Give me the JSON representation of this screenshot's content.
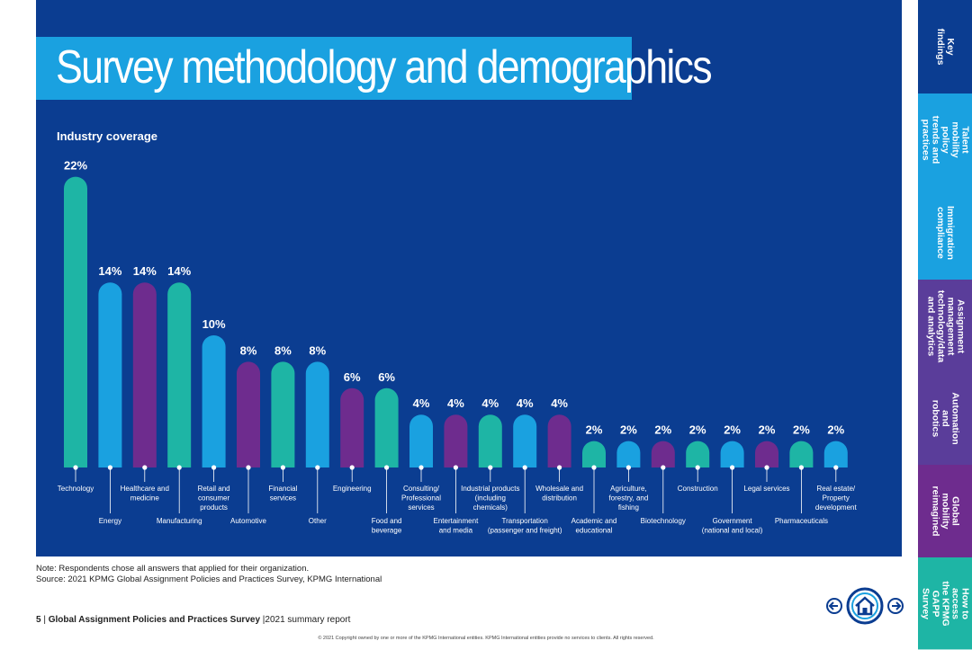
{
  "page": {
    "title": "Survey methodology and demographics",
    "section_title": "Industry coverage"
  },
  "sidebar": [
    {
      "label": "Key findings",
      "color": "#0b3d91"
    },
    {
      "label": "Talent mobility\npolicy trends and\npractices",
      "color": "#1aa1e0"
    },
    {
      "label": "Immigration\ncompliance",
      "color": "#1aa1e0"
    },
    {
      "label": "Assignment\nmanagement\ntechnology/data\nand analytics",
      "color": "#5a3d9a"
    },
    {
      "label": "Automation and\nrobotics",
      "color": "#5a3d9a"
    },
    {
      "label": "Global mobility\nreimagined",
      "color": "#6e2c8e"
    },
    {
      "label": "How to access\nthe KPMG GAPP\nSurvey",
      "color": "#1eb5a5"
    }
  ],
  "chart_data": {
    "type": "bar",
    "title": "Industry coverage",
    "unit": "%",
    "categories": [
      "Technology",
      "Energy",
      "Healthcare and medicine",
      "Manufacturing",
      "Retail and consumer products",
      "Automotive",
      "Financial services",
      "Other",
      "Engineering",
      "Food and beverage",
      "Consulting/ Professional services",
      "Entertainment and media",
      "Industrial products (including chemicals)",
      "Transportation (passenger and freight)",
      "Wholesale and distribution",
      "Academic and educational",
      "Agriculture, forestry, and fishing",
      "Biotechnology",
      "Construction",
      "Government (national and local)",
      "Legal services",
      "Pharmaceuticals",
      "Real estate/ Property development"
    ],
    "label_lines": [
      [
        "Technology"
      ],
      [
        "Energy"
      ],
      [
        "Healthcare and",
        "medicine"
      ],
      [
        "Manufacturing"
      ],
      [
        "Retail and",
        "consumer",
        "products"
      ],
      [
        "Automotive"
      ],
      [
        "Financial",
        "services"
      ],
      [
        "Other"
      ],
      [
        "Engineering"
      ],
      [
        "Food and",
        "beverage"
      ],
      [
        "Consulting/",
        "Professional",
        "services"
      ],
      [
        "Entertainment",
        "and media"
      ],
      [
        "Industrial products",
        "(including",
        "chemicals)"
      ],
      [
        "Transportation",
        "(passenger and freight)"
      ],
      [
        "Wholesale and",
        "distribution"
      ],
      [
        "Academic and",
        "educational"
      ],
      [
        "Agriculture,",
        "forestry, and",
        "fishing"
      ],
      [
        "Biotechnology"
      ],
      [
        "Construction"
      ],
      [
        "Government",
        "(national and local)"
      ],
      [
        "Legal services"
      ],
      [
        "Pharmaceuticals"
      ],
      [
        "Real estate/",
        "Property",
        "development"
      ]
    ],
    "label_position": [
      "high",
      "low",
      "high",
      "low",
      "high",
      "low",
      "high",
      "low",
      "high",
      "low",
      "high",
      "low",
      "high",
      "low",
      "high",
      "low",
      "high",
      "low",
      "high",
      "low",
      "high",
      "low",
      "high"
    ],
    "values": [
      22,
      14,
      14,
      14,
      10,
      8,
      8,
      8,
      6,
      6,
      4,
      4,
      4,
      4,
      4,
      2,
      2,
      2,
      2,
      2,
      2,
      2,
      2
    ],
    "value_labels": [
      "22%",
      "14%",
      "14%",
      "14%",
      "10%",
      "8%",
      "8%",
      "8%",
      "6%",
      "6%",
      "4%",
      "4%",
      "4%",
      "4%",
      "4%",
      "2%",
      "2%",
      "2%",
      "2%",
      "2%",
      "2%",
      "2%",
      "2%"
    ],
    "colors": [
      "#1eb5a5",
      "#1aa1e0",
      "#6e2c8e",
      "#1eb5a5",
      "#1aa1e0",
      "#6e2c8e",
      "#1eb5a5",
      "#1aa1e0",
      "#6e2c8e",
      "#1eb5a5",
      "#1aa1e0",
      "#6e2c8e",
      "#1eb5a5",
      "#1aa1e0",
      "#6e2c8e",
      "#1eb5a5",
      "#1aa1e0",
      "#6e2c8e",
      "#1eb5a5",
      "#1aa1e0",
      "#6e2c8e",
      "#1eb5a5",
      "#1aa1e0"
    ],
    "ylim": [
      0,
      22
    ]
  },
  "notes": {
    "note": "Note: Respondents chose all answers that applied for their organization.",
    "source": "Source: 2021 KPMG Global Assignment Policies and Practices Survey, KPMG International"
  },
  "footer": {
    "page_number": "5",
    "separator": "|",
    "report_title": "Global Assignment Policies and Practices Survey",
    "separator2": "|",
    "report_subtitle": "2021 summary report",
    "copyright": "© 2021 Copyright owned by one or more of the KPMG International entities. KPMG International entities provide no services to clients. All rights reserved."
  },
  "nav": {
    "prev_icon": "arrow-left-icon",
    "home_icon": "home-icon",
    "next_icon": "arrow-right-icon"
  }
}
